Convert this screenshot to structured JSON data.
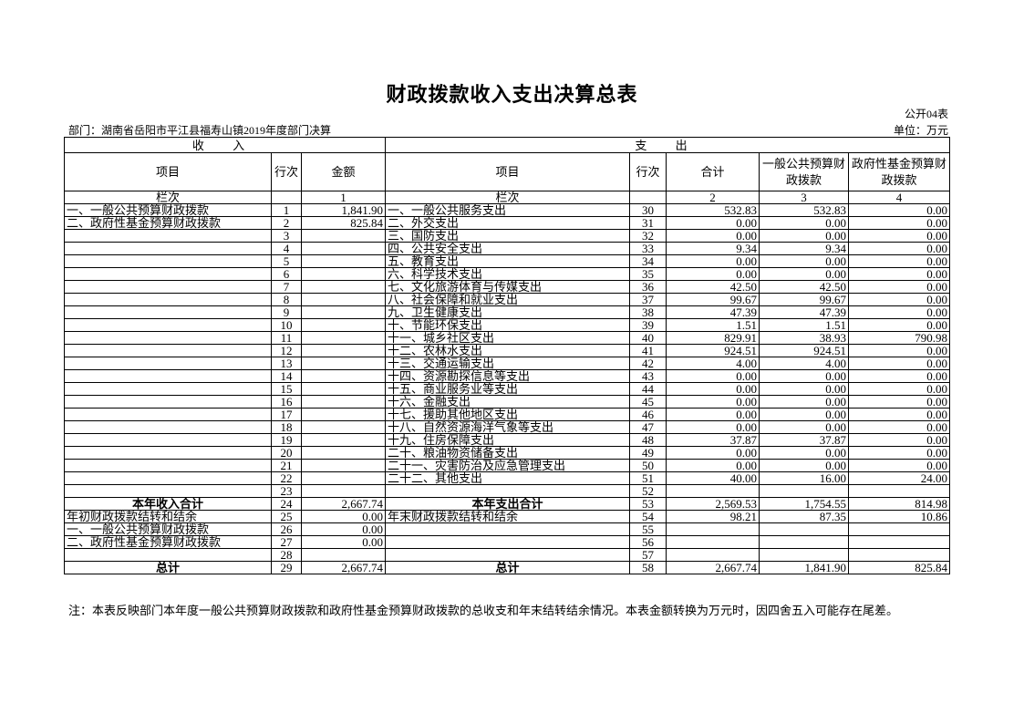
{
  "header": {
    "title": "财政拨款收入支出决算总表",
    "form_no": "公开04表",
    "department": "部门：湖南省岳阳市平江县福寿山镇2019年度部门决算",
    "unit": "单位：万元"
  },
  "table": {
    "income_header": "收 入",
    "expense_header": "支 出",
    "columns": [
      "项目",
      "行次",
      "金额",
      "项目",
      "行次",
      "合计",
      "一般公共预算财政拨款",
      "政府性基金预算财政拨款"
    ],
    "column_index_row": [
      "栏次",
      null,
      "1",
      "栏次",
      null,
      "2",
      "3",
      "4"
    ],
    "rows": [
      [
        "一、一般公共预算财政拨款",
        "1",
        "1,841.90",
        "一、一般公共服务支出",
        "30",
        "532.83",
        "532.83",
        "0.00"
      ],
      [
        "二、政府性基金预算财政拨款",
        "2",
        "825.84",
        "二、外交支出",
        "31",
        "0.00",
        "0.00",
        "0.00"
      ],
      [
        null,
        "3",
        null,
        "三、国防支出",
        "32",
        "0.00",
        "0.00",
        "0.00"
      ],
      [
        null,
        "4",
        null,
        "四、公共安全支出",
        "33",
        "9.34",
        "9.34",
        "0.00"
      ],
      [
        null,
        "5",
        null,
        "五、教育支出",
        "34",
        "0.00",
        "0.00",
        "0.00"
      ],
      [
        null,
        "6",
        null,
        "六、科学技术支出",
        "35",
        "0.00",
        "0.00",
        "0.00"
      ],
      [
        null,
        "7",
        null,
        "七、文化旅游体育与传媒支出",
        "36",
        "42.50",
        "42.50",
        "0.00"
      ],
      [
        null,
        "8",
        null,
        "八、社会保障和就业支出",
        "37",
        "99.67",
        "99.67",
        "0.00"
      ],
      [
        null,
        "9",
        null,
        "九、卫生健康支出",
        "38",
        "47.39",
        "47.39",
        "0.00"
      ],
      [
        null,
        "10",
        null,
        "十、节能环保支出",
        "39",
        "1.51",
        "1.51",
        "0.00"
      ],
      [
        null,
        "11",
        null,
        "十一、城乡社区支出",
        "40",
        "829.91",
        "38.93",
        "790.98"
      ],
      [
        null,
        "12",
        null,
        "十二、农林水支出",
        "41",
        "924.51",
        "924.51",
        "0.00"
      ],
      [
        null,
        "13",
        null,
        "十三、交通运输支出",
        "42",
        "4.00",
        "4.00",
        "0.00"
      ],
      [
        null,
        "14",
        null,
        "十四、资源勘探信息等支出",
        "43",
        "0.00",
        "0.00",
        "0.00"
      ],
      [
        null,
        "15",
        null,
        "十五、商业服务业等支出",
        "44",
        "0.00",
        "0.00",
        "0.00"
      ],
      [
        null,
        "16",
        null,
        "十六、金融支出",
        "45",
        "0.00",
        "0.00",
        "0.00"
      ],
      [
        null,
        "17",
        null,
        "十七、援助其他地区支出",
        "46",
        "0.00",
        "0.00",
        "0.00"
      ],
      [
        null,
        "18",
        null,
        "十八、自然资源海洋气象等支出",
        "47",
        "0.00",
        "0.00",
        "0.00"
      ],
      [
        null,
        "19",
        null,
        "十九、住房保障支出",
        "48",
        "37.87",
        "37.87",
        "0.00"
      ],
      [
        null,
        "20",
        null,
        "二十、粮油物资储备支出",
        "49",
        "0.00",
        "0.00",
        "0.00"
      ],
      [
        null,
        "21",
        null,
        "二十一、灾害防治及应急管理支出",
        "50",
        "0.00",
        "0.00",
        "0.00"
      ],
      [
        null,
        "22",
        null,
        "二十二、其他支出",
        "51",
        "40.00",
        "16.00",
        "24.00"
      ],
      [
        null,
        "23",
        null,
        null,
        "52",
        null,
        null,
        null
      ],
      [
        "本年收入合计",
        "24",
        "2,667.74",
        "本年支出合计",
        "53",
        "2,569.53",
        "1,754.55",
        "814.98"
      ],
      [
        "年初财政拨款结转和结余",
        "25",
        "0.00",
        "年末财政拨款结转和结余",
        "54",
        "98.21",
        "87.35",
        "10.86"
      ],
      [
        "一、一般公共预算财政拨款",
        "26",
        "0.00",
        null,
        "55",
        null,
        null,
        null
      ],
      [
        "二、政府性基金预算财政拨款",
        "27",
        "0.00",
        null,
        "56",
        null,
        null,
        null
      ],
      [
        null,
        "28",
        null,
        null,
        "57",
        null,
        null,
        null
      ],
      [
        "总计",
        "29",
        "2,667.74",
        "总计",
        "58",
        "2,667.74",
        "1,841.90",
        "825.84"
      ]
    ]
  },
  "note": "注：本表反映部门本年度一般公共预算财政拨款和政府性基金预算财政拨款的总收支和年末结转结余情况。本表金额转换为万元时，因四舍五入可能存在尾差。"
}
